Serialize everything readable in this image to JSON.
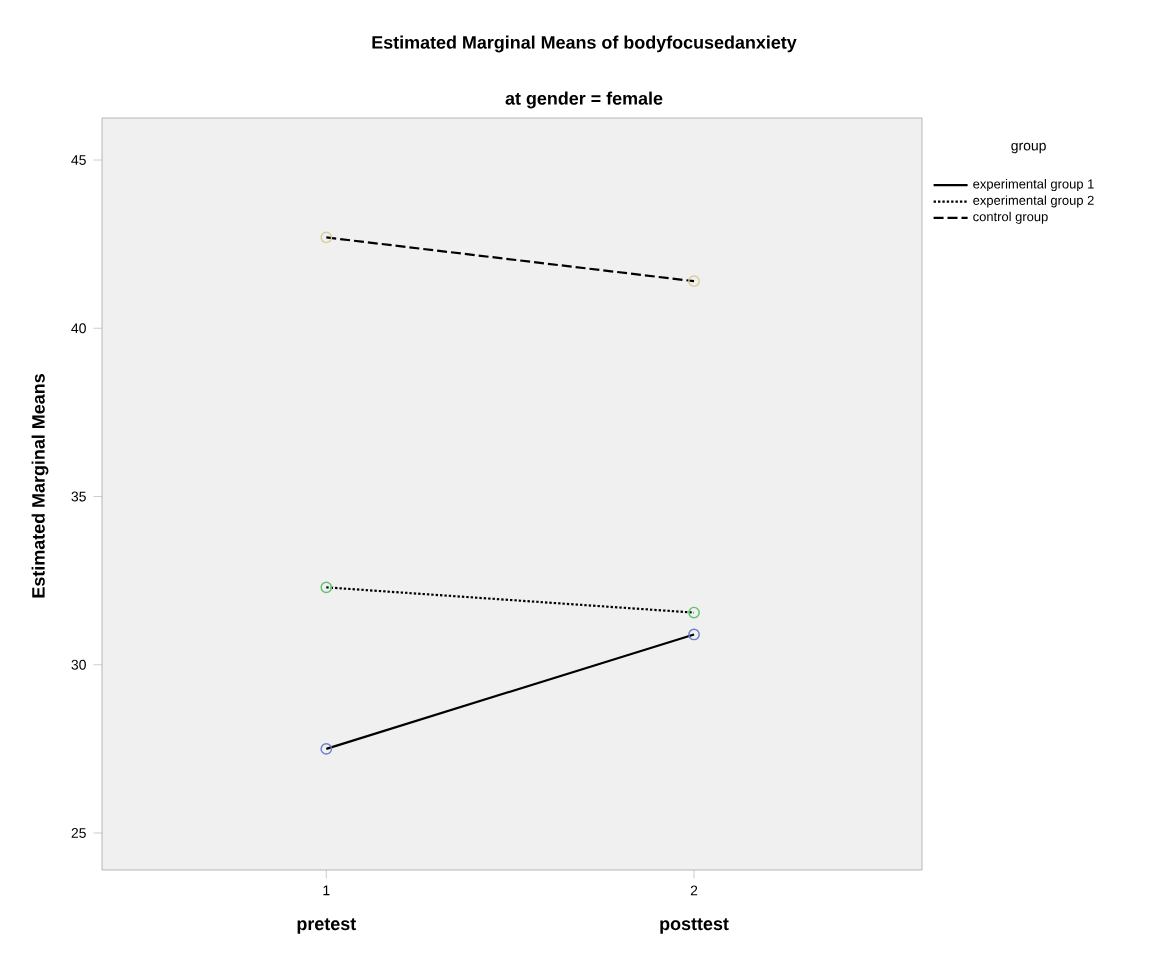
{
  "chart_data": {
    "type": "line",
    "title": "Estimated Marginal Means of bodyfocusedanxiety",
    "subtitle": "at gender = female",
    "ylabel": "Estimated Marginal Means",
    "legend_title": "group",
    "x": [
      1,
      2
    ],
    "xlim": [
      0.39,
      2.62
    ],
    "xticks": [
      1,
      2
    ],
    "ylim": [
      23.9,
      46.25
    ],
    "yticks": [
      25,
      30,
      35,
      40,
      45
    ],
    "annotations": [
      "pretest",
      "posttest"
    ],
    "series": [
      {
        "name": "experimental group 1",
        "color": "#000000",
        "colors": [
          "#6b7fc4",
          "#6b7fc4"
        ],
        "line_style": "solid",
        "values": [
          27.5,
          30.9
        ]
      },
      {
        "name": "experimental group 2",
        "color": "#000000",
        "colors": [
          "#5cc46b",
          "#5cc46b"
        ],
        "line_style": "dotted",
        "values": [
          32.3,
          31.55
        ]
      },
      {
        "name": "control group",
        "color": "#000000",
        "colors": [
          "#d8cc9a",
          "#d8cc9a"
        ],
        "line_style": "dashed",
        "values": [
          42.7,
          41.4
        ]
      }
    ],
    "marker": "circle",
    "legend": "top right",
    "grid": false
  }
}
